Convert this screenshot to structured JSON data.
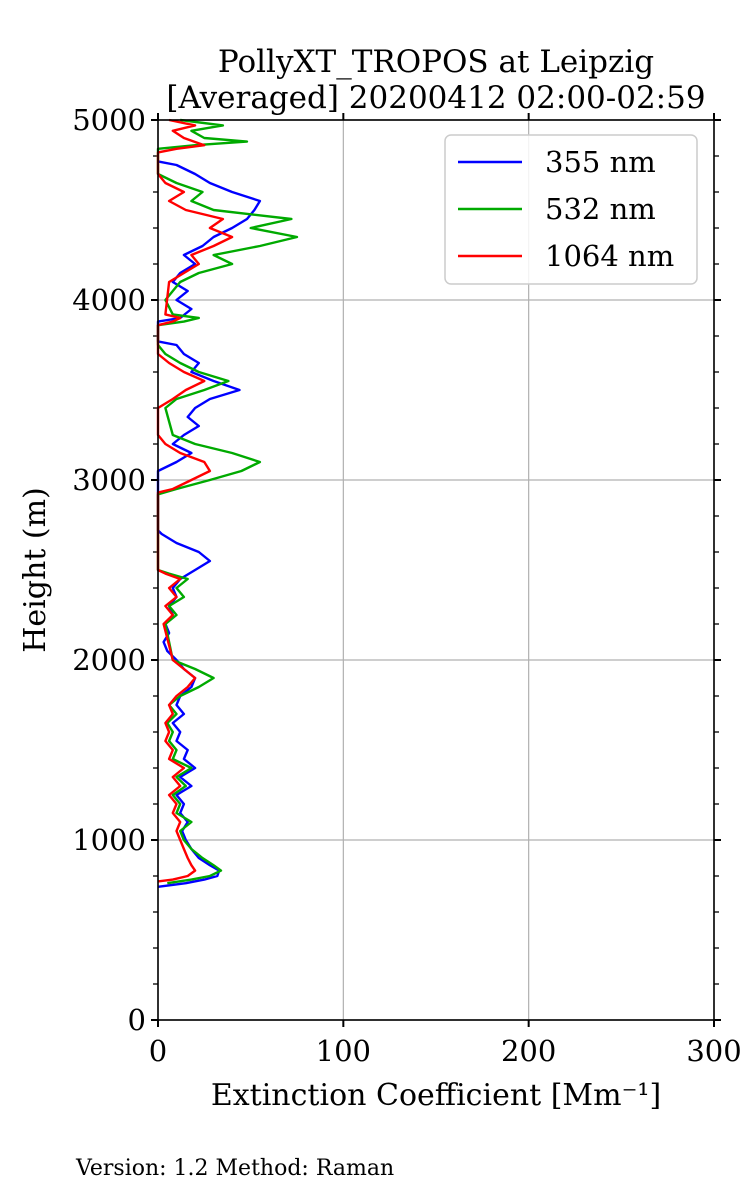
{
  "chart_data": {
    "type": "line",
    "title_lines": [
      "PollyXT_TROPOS at Leipzig",
      "[Averaged] 20200412 02:00-02:59"
    ],
    "xlabel": "Extinction Coefficient [Mm⁻¹]",
    "ylabel": "Height (m)",
    "xlim": [
      0,
      300
    ],
    "ylim": [
      0,
      5000
    ],
    "x_ticks": [
      0,
      100,
      200,
      300
    ],
    "y_ticks": [
      0,
      1000,
      2000,
      3000,
      4000,
      5000
    ],
    "x_tick_labels": [
      "0",
      "100",
      "200",
      "300"
    ],
    "y_tick_labels": [
      "0",
      "1000",
      "2000",
      "3000",
      "4000",
      "5000"
    ],
    "grid": true,
    "legend_position": "top-right",
    "series": [
      {
        "name": "355 nm",
        "color": "#0000ff",
        "points": [
          [
            0,
            740
          ],
          [
            15,
            760
          ],
          [
            25,
            780
          ],
          [
            32,
            800
          ],
          [
            33,
            830
          ],
          [
            28,
            860
          ],
          [
            22,
            900
          ],
          [
            18,
            950
          ],
          [
            15,
            1000
          ],
          [
            13,
            1050
          ],
          [
            16,
            1100
          ],
          [
            12,
            1150
          ],
          [
            14,
            1200
          ],
          [
            10,
            1250
          ],
          [
            18,
            1300
          ],
          [
            12,
            1350
          ],
          [
            20,
            1400
          ],
          [
            14,
            1450
          ],
          [
            16,
            1500
          ],
          [
            10,
            1550
          ],
          [
            12,
            1600
          ],
          [
            8,
            1650
          ],
          [
            14,
            1700
          ],
          [
            10,
            1750
          ],
          [
            12,
            1800
          ],
          [
            18,
            1850
          ],
          [
            20,
            1900
          ],
          [
            14,
            1950
          ],
          [
            10,
            2000
          ],
          [
            5,
            2050
          ],
          [
            3,
            2100
          ],
          [
            6,
            2150
          ],
          [
            4,
            2200
          ],
          [
            8,
            2250
          ],
          [
            6,
            2300
          ],
          [
            10,
            2350
          ],
          [
            8,
            2400
          ],
          [
            12,
            2450
          ],
          [
            20,
            2500
          ],
          [
            28,
            2550
          ],
          [
            22,
            2600
          ],
          [
            10,
            2650
          ],
          [
            2,
            2700
          ],
          [
            0,
            2720
          ],
          [
            0,
            3050
          ],
          [
            10,
            3100
          ],
          [
            18,
            3150
          ],
          [
            8,
            3200
          ],
          [
            14,
            3250
          ],
          [
            22,
            3300
          ],
          [
            16,
            3350
          ],
          [
            20,
            3400
          ],
          [
            28,
            3450
          ],
          [
            44,
            3500
          ],
          [
            30,
            3550
          ],
          [
            18,
            3600
          ],
          [
            22,
            3650
          ],
          [
            14,
            3700
          ],
          [
            10,
            3750
          ],
          [
            0,
            3770
          ],
          [
            0,
            3880
          ],
          [
            12,
            3900
          ],
          [
            18,
            3950
          ],
          [
            10,
            4000
          ],
          [
            16,
            4050
          ],
          [
            8,
            4100
          ],
          [
            12,
            4150
          ],
          [
            20,
            4200
          ],
          [
            14,
            4250
          ],
          [
            24,
            4300
          ],
          [
            30,
            4350
          ],
          [
            40,
            4400
          ],
          [
            48,
            4450
          ],
          [
            52,
            4500
          ],
          [
            55,
            4550
          ],
          [
            40,
            4600
          ],
          [
            28,
            4650
          ],
          [
            20,
            4700
          ],
          [
            10,
            4750
          ],
          [
            0,
            4770
          ]
        ]
      },
      {
        "name": "532 nm",
        "color": "#00aa00",
        "points": [
          [
            5,
            760
          ],
          [
            18,
            780
          ],
          [
            28,
            800
          ],
          [
            34,
            830
          ],
          [
            30,
            860
          ],
          [
            24,
            900
          ],
          [
            18,
            950
          ],
          [
            14,
            1000
          ],
          [
            12,
            1050
          ],
          [
            18,
            1100
          ],
          [
            10,
            1150
          ],
          [
            12,
            1200
          ],
          [
            8,
            1250
          ],
          [
            15,
            1300
          ],
          [
            10,
            1350
          ],
          [
            18,
            1400
          ],
          [
            8,
            1450
          ],
          [
            10,
            1500
          ],
          [
            6,
            1550
          ],
          [
            8,
            1600
          ],
          [
            5,
            1650
          ],
          [
            10,
            1700
          ],
          [
            6,
            1750
          ],
          [
            12,
            1800
          ],
          [
            22,
            1850
          ],
          [
            30,
            1900
          ],
          [
            20,
            1950
          ],
          [
            8,
            2000
          ],
          [
            4,
            2200
          ],
          [
            10,
            2250
          ],
          [
            6,
            2300
          ],
          [
            14,
            2350
          ],
          [
            10,
            2400
          ],
          [
            16,
            2450
          ],
          [
            6,
            2480
          ],
          [
            0,
            2500
          ],
          [
            0,
            2920
          ],
          [
            10,
            2950
          ],
          [
            28,
            3000
          ],
          [
            45,
            3050
          ],
          [
            55,
            3100
          ],
          [
            40,
            3150
          ],
          [
            20,
            3200
          ],
          [
            8,
            3250
          ],
          [
            4,
            3400
          ],
          [
            10,
            3450
          ],
          [
            25,
            3500
          ],
          [
            38,
            3550
          ],
          [
            22,
            3600
          ],
          [
            12,
            3650
          ],
          [
            4,
            3700
          ],
          [
            0,
            3750
          ],
          [
            0,
            3860
          ],
          [
            14,
            3880
          ],
          [
            22,
            3900
          ],
          [
            8,
            3920
          ],
          [
            4,
            4000
          ],
          [
            12,
            4100
          ],
          [
            22,
            4150
          ],
          [
            40,
            4200
          ],
          [
            30,
            4250
          ],
          [
            55,
            4300
          ],
          [
            75,
            4350
          ],
          [
            50,
            4400
          ],
          [
            72,
            4450
          ],
          [
            30,
            4500
          ],
          [
            18,
            4550
          ],
          [
            24,
            4600
          ],
          [
            10,
            4650
          ],
          [
            0,
            4700
          ],
          [
            0,
            4840
          ],
          [
            20,
            4860
          ],
          [
            48,
            4880
          ],
          [
            25,
            4900
          ],
          [
            18,
            4940
          ],
          [
            35,
            4970
          ],
          [
            12,
            5000
          ]
        ]
      },
      {
        "name": "1064 nm",
        "color": "#ff0000",
        "points": [
          [
            0,
            770
          ],
          [
            8,
            780
          ],
          [
            16,
            800
          ],
          [
            20,
            830
          ],
          [
            18,
            860
          ],
          [
            16,
            900
          ],
          [
            14,
            950
          ],
          [
            12,
            1000
          ],
          [
            10,
            1050
          ],
          [
            12,
            1100
          ],
          [
            8,
            1150
          ],
          [
            10,
            1200
          ],
          [
            6,
            1250
          ],
          [
            12,
            1300
          ],
          [
            8,
            1350
          ],
          [
            14,
            1400
          ],
          [
            6,
            1450
          ],
          [
            8,
            1500
          ],
          [
            4,
            1550
          ],
          [
            6,
            1600
          ],
          [
            4,
            1650
          ],
          [
            8,
            1700
          ],
          [
            6,
            1750
          ],
          [
            10,
            1800
          ],
          [
            16,
            1850
          ],
          [
            20,
            1900
          ],
          [
            14,
            1950
          ],
          [
            8,
            2000
          ],
          [
            3,
            2200
          ],
          [
            8,
            2250
          ],
          [
            4,
            2300
          ],
          [
            10,
            2350
          ],
          [
            6,
            2400
          ],
          [
            12,
            2450
          ],
          [
            4,
            2480
          ],
          [
            0,
            2500
          ],
          [
            0,
            2720
          ],
          [
            0,
            2930
          ],
          [
            8,
            2950
          ],
          [
            18,
            3000
          ],
          [
            28,
            3050
          ],
          [
            25,
            3100
          ],
          [
            12,
            3150
          ],
          [
            4,
            3200
          ],
          [
            0,
            3250
          ],
          [
            0,
            3400
          ],
          [
            8,
            3450
          ],
          [
            15,
            3500
          ],
          [
            25,
            3550
          ],
          [
            14,
            3600
          ],
          [
            6,
            3650
          ],
          [
            0,
            3700
          ],
          [
            0,
            3860
          ],
          [
            8,
            3880
          ],
          [
            12,
            3900
          ],
          [
            4,
            3920
          ],
          [
            6,
            4100
          ],
          [
            14,
            4150
          ],
          [
            22,
            4200
          ],
          [
            18,
            4250
          ],
          [
            30,
            4300
          ],
          [
            40,
            4350
          ],
          [
            28,
            4400
          ],
          [
            35,
            4450
          ],
          [
            15,
            4500
          ],
          [
            6,
            4550
          ],
          [
            14,
            4600
          ],
          [
            4,
            4650
          ],
          [
            0,
            4700
          ],
          [
            0,
            4820
          ],
          [
            10,
            4840
          ],
          [
            25,
            4860
          ],
          [
            14,
            4900
          ],
          [
            8,
            4940
          ],
          [
            20,
            4970
          ],
          [
            6,
            5000
          ]
        ]
      }
    ]
  },
  "footer": {
    "version_text": "Version: 1.2  Method: Raman"
  }
}
